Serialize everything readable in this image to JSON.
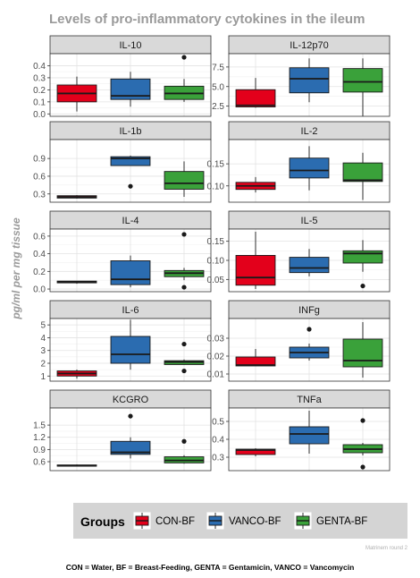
{
  "title": "Levels of pro-inflammatory cytokines in the ileum",
  "ylabel": "pg/ml per mg tissue",
  "legend": {
    "title": "Groups",
    "items": [
      {
        "label": "CON-BF",
        "color": "#E3001B"
      },
      {
        "label": "VANCO-BF",
        "color": "#2B6CB0"
      },
      {
        "label": "GENTA-BF",
        "color": "#3AA13A"
      }
    ]
  },
  "watermark": "Matrinem round 2",
  "footnote": "CON = Water, BF = Breast-Feeding, GENTA = Gentamicin,  VANCO = Vancomycin",
  "chart_data": [
    {
      "type": "box",
      "panel": "IL-10",
      "ylim": [
        -0.02,
        0.5
      ],
      "yticks": [
        "0.0",
        "0.1",
        "0.2",
        "0.3",
        "0.4"
      ],
      "categories": [
        "CON-BF",
        "VANCO-BF",
        "GENTA-BF"
      ],
      "boxes": [
        {
          "min": 0.02,
          "q1": 0.1,
          "median": 0.17,
          "q3": 0.24,
          "max": 0.31,
          "outliers": []
        },
        {
          "min": 0.06,
          "q1": 0.12,
          "median": 0.15,
          "q3": 0.29,
          "max": 0.35,
          "outliers": []
        },
        {
          "min": 0.1,
          "q1": 0.12,
          "median": 0.17,
          "q3": 0.23,
          "max": 0.29,
          "outliers": [
            0.47
          ]
        }
      ]
    },
    {
      "type": "box",
      "panel": "IL-12p70",
      "ylim": [
        1.2,
        9.2
      ],
      "yticks": [
        "2.5",
        "5.0",
        "7.5"
      ],
      "categories": [
        "CON-BF",
        "VANCO-BF",
        "GENTA-BF"
      ],
      "boxes": [
        {
          "min": 2.3,
          "q1": 2.4,
          "median": 2.6,
          "q3": 4.6,
          "max": 6.1,
          "outliers": []
        },
        {
          "min": 3.0,
          "q1": 4.2,
          "median": 6.0,
          "q3": 7.4,
          "max": 8.6,
          "outliers": []
        },
        {
          "min": 1.2,
          "q1": 4.3,
          "median": 5.6,
          "q3": 7.3,
          "max": 8.6,
          "outliers": []
        }
      ]
    },
    {
      "type": "box",
      "panel": "IL-1b",
      "ylim": [
        0.16,
        1.22
      ],
      "yticks": [
        "0.3",
        "0.6",
        "0.9"
      ],
      "categories": [
        "CON-BF",
        "VANCO-BF",
        "GENTA-BF"
      ],
      "boxes": [
        {
          "min": 0.22,
          "q1": 0.23,
          "median": 0.25,
          "q3": 0.27,
          "max": 0.28,
          "outliers": []
        },
        {
          "min": 0.78,
          "q1": 0.78,
          "median": 0.9,
          "q3": 0.93,
          "max": 0.95,
          "outliers": [
            0.43
          ]
        },
        {
          "min": 0.25,
          "q1": 0.38,
          "median": 0.48,
          "q3": 0.68,
          "max": 0.85,
          "outliers": []
        }
      ]
    },
    {
      "type": "box",
      "panel": "IL-2",
      "ylim": [
        0.063,
        0.205
      ],
      "yticks": [
        "0.10",
        "0.15"
      ],
      "categories": [
        "CON-BF",
        "VANCO-BF",
        "GENTA-BF"
      ],
      "boxes": [
        {
          "min": 0.085,
          "q1": 0.092,
          "median": 0.1,
          "q3": 0.108,
          "max": 0.12,
          "outliers": []
        },
        {
          "min": 0.09,
          "q1": 0.118,
          "median": 0.135,
          "q3": 0.163,
          "max": 0.19,
          "outliers": []
        },
        {
          "min": 0.068,
          "q1": 0.11,
          "median": 0.113,
          "q3": 0.152,
          "max": 0.175,
          "outliers": []
        }
      ]
    },
    {
      "type": "box",
      "panel": "IL-4",
      "ylim": [
        -0.03,
        0.68
      ],
      "yticks": [
        "0.0",
        "0.2",
        "0.4",
        "0.6"
      ],
      "categories": [
        "CON-BF",
        "VANCO-BF",
        "GENTA-BF"
      ],
      "boxes": [
        {
          "min": 0.06,
          "q1": 0.07,
          "median": 0.08,
          "q3": 0.09,
          "max": 0.09,
          "outliers": []
        },
        {
          "min": 0.02,
          "q1": 0.05,
          "median": 0.11,
          "q3": 0.32,
          "max": 0.38,
          "outliers": []
        },
        {
          "min": 0.1,
          "q1": 0.14,
          "median": 0.18,
          "q3": 0.21,
          "max": 0.24,
          "outliers": [
            0.62,
            0.02
          ]
        }
      ]
    },
    {
      "type": "box",
      "panel": "IL-5",
      "ylim": [
        0.018,
        0.182
      ],
      "yticks": [
        "0.05",
        "0.10",
        "0.15"
      ],
      "categories": [
        "CON-BF",
        "VANCO-BF",
        "GENTA-BF"
      ],
      "boxes": [
        {
          "min": 0.025,
          "q1": 0.035,
          "median": 0.055,
          "q3": 0.113,
          "max": 0.175,
          "outliers": []
        },
        {
          "min": 0.058,
          "q1": 0.068,
          "median": 0.08,
          "q3": 0.108,
          "max": 0.13,
          "outliers": []
        },
        {
          "min": 0.07,
          "q1": 0.093,
          "median": 0.118,
          "q3": 0.125,
          "max": 0.153,
          "outliers": [
            0.033
          ]
        }
      ]
    },
    {
      "type": "box",
      "panel": "IL-6",
      "ylim": [
        0.6,
        5.5
      ],
      "yticks": [
        "1",
        "2",
        "3",
        "4",
        "5"
      ],
      "categories": [
        "CON-BF",
        "VANCO-BF",
        "GENTA-BF"
      ],
      "boxes": [
        {
          "min": 0.8,
          "q1": 1.0,
          "median": 1.2,
          "q3": 1.4,
          "max": 1.5,
          "outliers": []
        },
        {
          "min": 1.5,
          "q1": 2.0,
          "median": 2.7,
          "q3": 4.1,
          "max": 5.4,
          "outliers": []
        },
        {
          "min": 1.9,
          "q1": 1.9,
          "median": 2.1,
          "q3": 2.2,
          "max": 2.3,
          "outliers": [
            3.5,
            1.4
          ]
        }
      ]
    },
    {
      "type": "box",
      "panel": "INFg",
      "ylim": [
        0.006,
        0.041
      ],
      "yticks": [
        "0.01",
        "0.02",
        "0.03"
      ],
      "categories": [
        "CON-BF",
        "VANCO-BF",
        "GENTA-BF"
      ],
      "boxes": [
        {
          "min": 0.0145,
          "q1": 0.0145,
          "median": 0.015,
          "q3": 0.0195,
          "max": 0.024,
          "outliers": []
        },
        {
          "min": 0.0175,
          "q1": 0.019,
          "median": 0.022,
          "q3": 0.025,
          "max": 0.027,
          "outliers": [
            0.035
          ]
        },
        {
          "min": 0.008,
          "q1": 0.014,
          "median": 0.0175,
          "q3": 0.0295,
          "max": 0.039,
          "outliers": []
        }
      ]
    },
    {
      "type": "box",
      "panel": "KCGRO",
      "ylim": [
        0.38,
        1.92
      ],
      "yticks": [
        "0.6",
        "0.9",
        "1.2",
        "1.5"
      ],
      "categories": [
        "CON-BF",
        "VANCO-BF",
        "GENTA-BF"
      ],
      "boxes": [
        {
          "min": 0.48,
          "q1": 0.49,
          "median": 0.5,
          "q3": 0.52,
          "max": 0.53,
          "outliers": []
        },
        {
          "min": 0.68,
          "q1": 0.78,
          "median": 0.83,
          "q3": 1.1,
          "max": 1.2,
          "outliers": [
            1.72
          ]
        },
        {
          "min": 0.55,
          "q1": 0.57,
          "median": 0.63,
          "q3": 0.72,
          "max": 0.76,
          "outliers": [
            1.1
          ]
        }
      ]
    },
    {
      "type": "box",
      "panel": "TNFa",
      "ylim": [
        0.225,
        0.575
      ],
      "yticks": [
        "0.3",
        "0.4",
        "0.5"
      ],
      "categories": [
        "CON-BF",
        "VANCO-BF",
        "GENTA-BF"
      ],
      "boxes": [
        {
          "min": 0.305,
          "q1": 0.315,
          "median": 0.34,
          "q3": 0.345,
          "max": 0.35,
          "outliers": []
        },
        {
          "min": 0.32,
          "q1": 0.375,
          "median": 0.43,
          "q3": 0.47,
          "max": 0.56,
          "outliers": []
        },
        {
          "min": 0.31,
          "q1": 0.325,
          "median": 0.345,
          "q3": 0.37,
          "max": 0.38,
          "outliers": [
            0.505,
            0.245
          ]
        }
      ]
    }
  ]
}
